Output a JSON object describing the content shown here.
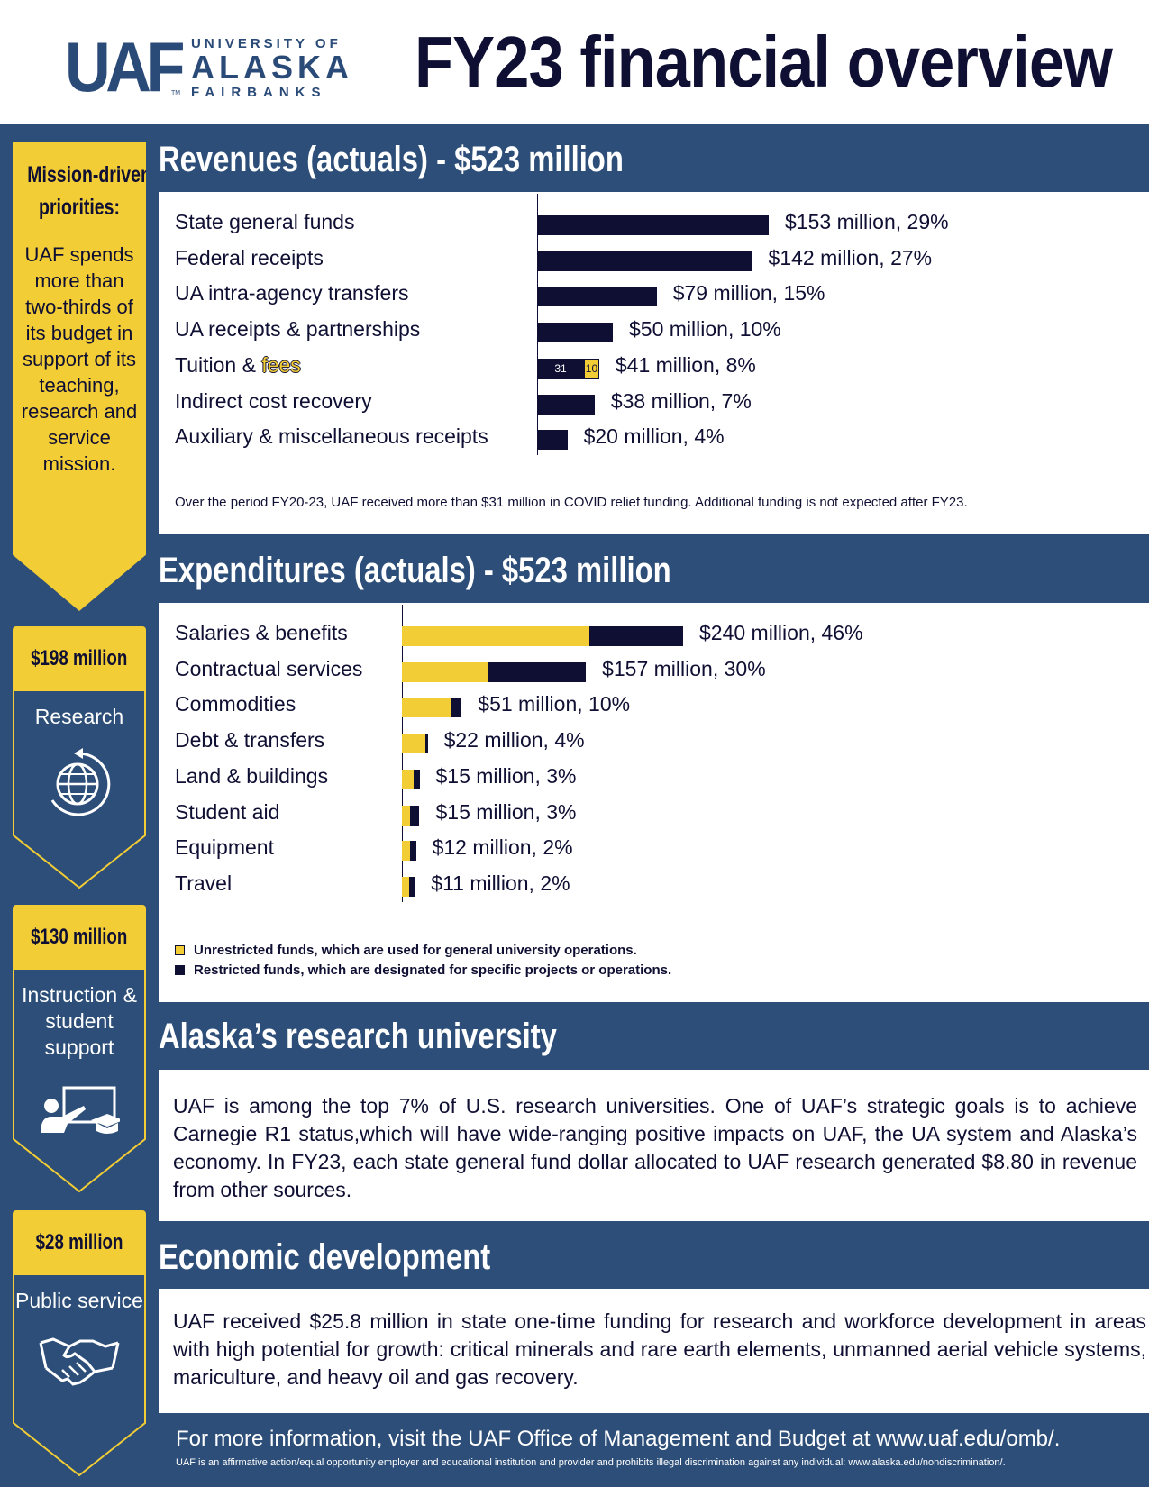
{
  "header": {
    "logo_mark": "UAF",
    "logo_line1": "UNIVERSITY OF",
    "logo_line2": "ALASKA",
    "logo_line3": "FAIRBANKS",
    "logo_tm": "TM",
    "title": "FY23 financial overview"
  },
  "colors": {
    "navy": "#2c4e78",
    "yellow": "#f3cd35",
    "dark": "#0f0f33"
  },
  "sidebar": {
    "mission_title_line1": "Mission-driven",
    "mission_title_line2": "priorities:",
    "mission_text": "UAF spends more than two-thirds of its budget in support of its teaching, research and service mission.",
    "cards": [
      {
        "amount": "$198 million",
        "label": "Research",
        "icon": "globe-icon"
      },
      {
        "amount": "$130 million",
        "label": "Instruction & student support",
        "icon": "teacher-icon"
      },
      {
        "amount": "$28 million",
        "label": "Public service",
        "icon": "handshake-icon"
      }
    ]
  },
  "revenues": {
    "heading": "Revenues (actuals) - $523 million",
    "note": "Over the period FY20-23, UAF received more than $31 million in COVID relief funding. Additional funding is not expected after FY23."
  },
  "expenditures": {
    "heading": "Expenditures (actuals) - $523 million",
    "legend": [
      {
        "label": "Unrestricted funds, which are used for general university operations.",
        "color": "#f3cd35"
      },
      {
        "label": "Restricted funds, which are designated for specific projects or operations.",
        "color": "#0f0f33"
      }
    ]
  },
  "research_section": {
    "heading": "Alaska’s research university",
    "text": "UAF is among the top 7% of U.S. research universities. One of UAF’s strategic goals is to achieve Carnegie R1 status,which will have wide-ranging positive impacts on UAF, the UA system and Alaska’s economy. In FY23, each state general fund dollar allocated to UAF research generated $8.80 in revenue from other sources."
  },
  "economic_section": {
    "heading": "Economic development",
    "text": "UAF received $25.8 million in state one-time funding for research and workforce development in areas with high potential for growth: critical minerals and rare earth elements, unmanned aerial vehicle systems, mariculture, and heavy oil and gas recovery."
  },
  "footer": {
    "main": "For more information, visit the UAF Office of Management and Budget at www.uaf.edu/omb/.",
    "small": "UAF is an affirmative action/equal opportunity employer and educational institution and provider  and prohibits illegal discrimination against any individual: www.alaska.edu/nondiscrimination/."
  },
  "chart_data": [
    {
      "type": "bar",
      "orientation": "horizontal",
      "title": "Revenues (actuals) - $523 million",
      "units": "$ million",
      "categories": [
        "State general funds",
        "Federal receipts",
        "UA intra-agency transfers",
        "UA receipts & partnerships",
        "Tuition & fees",
        "Indirect cost recovery",
        "Auxiliary & miscellaneous receipts"
      ],
      "values": [
        153,
        142,
        79,
        50,
        41,
        38,
        20
      ],
      "labels": [
        "$153 million, 29%",
        "$142 million, 27%",
        "$79 million, 15%",
        "$50 million, 10%",
        "$41 million, 8%",
        "$38 million, 7%",
        "$20 million, 4%"
      ],
      "tuition_split": {
        "restricted": 31,
        "unrestricted": 10
      }
    },
    {
      "type": "bar",
      "orientation": "horizontal",
      "stacked": true,
      "title": "Expenditures (actuals) - $523 million",
      "units": "$ million",
      "categories": [
        "Salaries & benefits",
        "Contractual services",
        "Commodities",
        "Debt & transfers",
        "Land & buildings",
        "Student aid",
        "Equipment",
        "Travel"
      ],
      "series": [
        {
          "name": "Unrestricted funds",
          "values": [
            160,
            73,
            42,
            20,
            10,
            7,
            7,
            6
          ]
        },
        {
          "name": "Restricted funds",
          "values": [
            80,
            84,
            9,
            2,
            5,
            8,
            5,
            5
          ]
        }
      ],
      "totals": [
        240,
        157,
        51,
        22,
        15,
        15,
        12,
        11
      ],
      "labels": [
        "$240 million, 46%",
        "$157 million, 30%",
        "$51 million, 10%",
        "$22 million, 4%",
        "$15 million, 3%",
        "$15 million, 3%",
        "$12 million, 2%",
        "$11 million, 2%"
      ]
    }
  ]
}
